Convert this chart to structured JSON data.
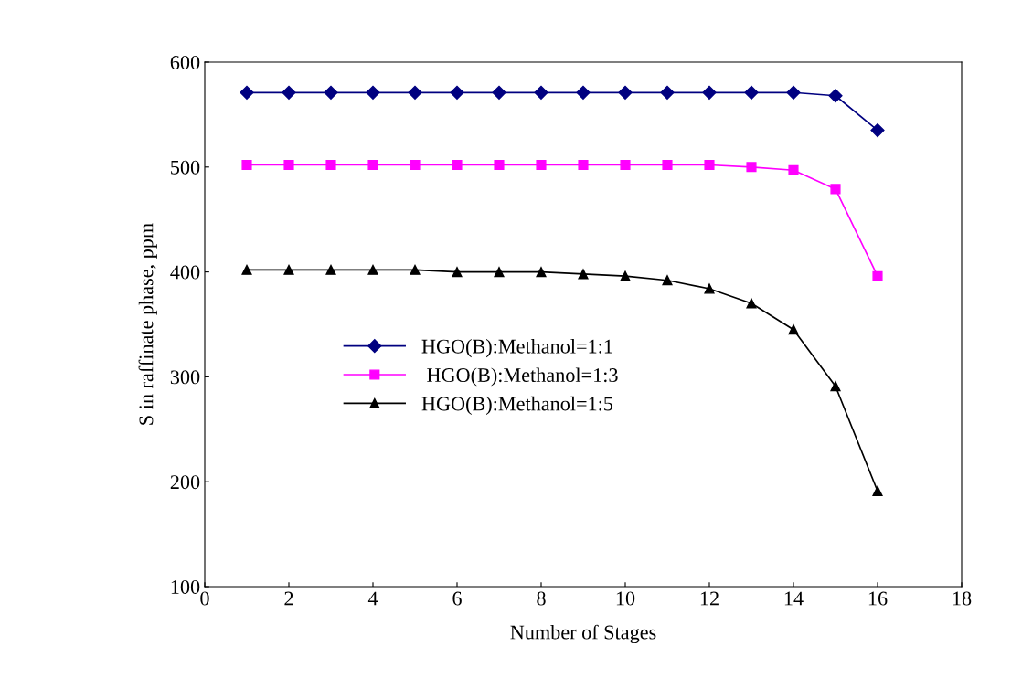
{
  "chart_data": {
    "type": "line",
    "xlabel": "Number of Stages",
    "ylabel": "S in raffinate phase, ppm",
    "x": [
      1,
      2,
      3,
      4,
      5,
      6,
      7,
      8,
      9,
      10,
      11,
      12,
      13,
      14,
      15,
      16
    ],
    "series": [
      {
        "name": "HGO(B):Methanol=1:1",
        "color": "#000080",
        "marker": "diamond",
        "values": [
          571,
          571,
          571,
          571,
          571,
          571,
          571,
          571,
          571,
          571,
          571,
          571,
          571,
          571,
          568,
          535
        ]
      },
      {
        "name": " HGO(B):Methanol=1:3",
        "color": "#ff00ff",
        "marker": "square",
        "values": [
          502,
          502,
          502,
          502,
          502,
          502,
          502,
          502,
          502,
          502,
          502,
          502,
          500,
          497,
          479,
          396
        ]
      },
      {
        "name": "HGO(B):Methanol=1:5",
        "color": "#000000",
        "marker": "triangle",
        "values": [
          402,
          402,
          402,
          402,
          402,
          400,
          400,
          400,
          398,
          396,
          392,
          384,
          370,
          345,
          291,
          191
        ]
      }
    ],
    "xlim": [
      0,
      18
    ],
    "xticks": [
      0,
      2,
      4,
      6,
      8,
      10,
      12,
      14,
      16,
      18
    ],
    "ylim": [
      100,
      600
    ],
    "yticks": [
      100,
      200,
      300,
      400,
      500,
      600
    ],
    "grid": false,
    "legend": "center left",
    "line_style": "solid"
  }
}
